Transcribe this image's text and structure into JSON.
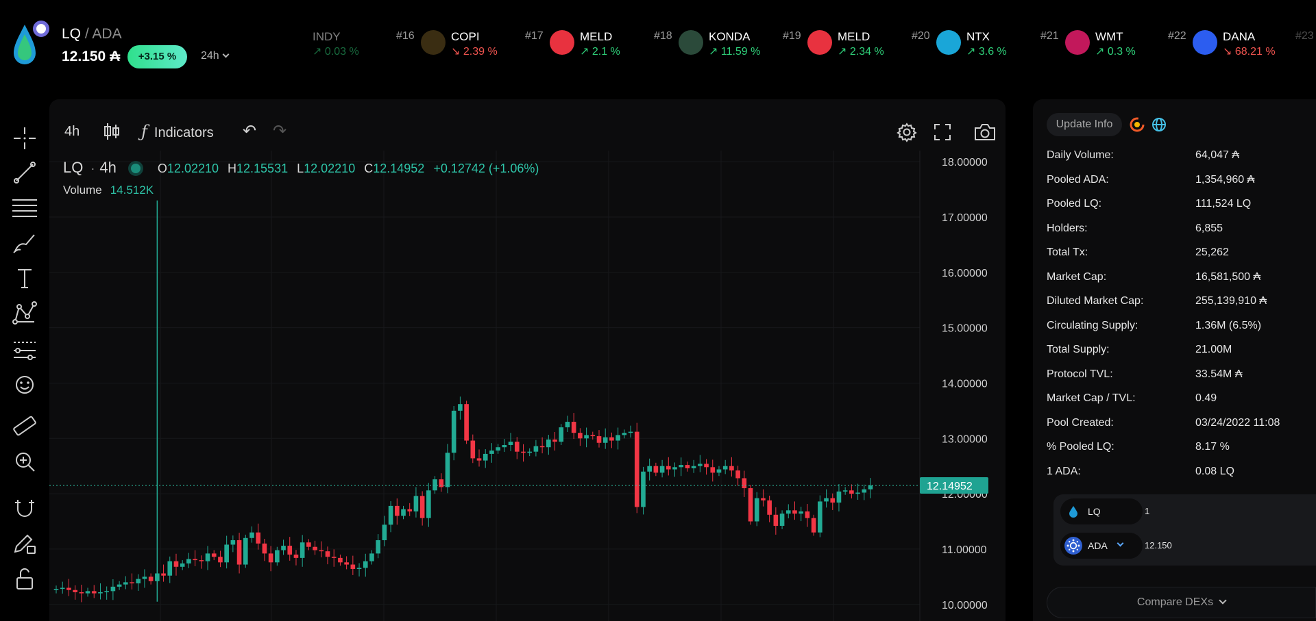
{
  "header": {
    "base": "LQ",
    "separator": "/",
    "quote": "ADA",
    "price": "12.150 ₳",
    "change": "+3.15 %",
    "period": "24h"
  },
  "ticker": [
    {
      "rank": "",
      "symbol": "INDY",
      "change": "↗ 0.03 %",
      "dir": "up",
      "faded": true
    },
    {
      "rank": "#16",
      "symbol": "COPI",
      "change": "↘ 2.39 %",
      "dir": "down",
      "logo_color": "#3a2d12"
    },
    {
      "rank": "#17",
      "symbol": "MELD",
      "change": "↗ 2.1 %",
      "dir": "up",
      "logo_color": "#e8323f"
    },
    {
      "rank": "#18",
      "symbol": "KONDA",
      "change": "↗ 11.59 %",
      "dir": "up",
      "logo_color": "#2b4a3a"
    },
    {
      "rank": "#19",
      "symbol": "MELD",
      "change": "↗ 2.34 %",
      "dir": "up",
      "logo_color": "#e8323f"
    },
    {
      "rank": "#20",
      "symbol": "NTX",
      "change": "↗ 3.6 %",
      "dir": "up",
      "logo_color": "#1aa6d8"
    },
    {
      "rank": "#21",
      "symbol": "WMT",
      "change": "↗ 0.3 %",
      "dir": "up",
      "logo_color": "#c2185b"
    },
    {
      "rank": "#22",
      "symbol": "DANA",
      "change": "↘ 68.21 %",
      "dir": "down",
      "logo_color": "#2c5df0"
    },
    {
      "rank": "#23",
      "symbol": "",
      "change": "",
      "dir": "up",
      "faded": true
    }
  ],
  "chart_toolbar": {
    "interval": "4h",
    "indicators_label": "Indicators"
  },
  "legend": {
    "symbol": "LQ",
    "interval": "4h",
    "o_label": "O",
    "o": "12.02210",
    "h_label": "H",
    "h": "12.15531",
    "l_label": "L",
    "l": "12.02210",
    "c_label": "C",
    "c": "12.14952",
    "change": "+0.12742 (+1.06%)",
    "volume_label": "Volume",
    "volume": "14.512K"
  },
  "chart_data": {
    "type": "candlestick",
    "ylim": [
      9.7,
      18.2
    ],
    "yticks": [
      "18.00000",
      "17.00000",
      "16.00000",
      "15.00000",
      "14.00000",
      "13.00000",
      "12.00000",
      "11.00000",
      "10.00000"
    ],
    "last_price": "12.14952",
    "last_value": 12.14952,
    "close": [
      10.28,
      10.3,
      10.26,
      10.22,
      10.2,
      10.24,
      10.2,
      10.22,
      10.24,
      10.32,
      10.36,
      10.4,
      10.38,
      10.46,
      10.5,
      10.42,
      10.56,
      10.52,
      10.78,
      10.68,
      10.74,
      10.82,
      10.8,
      10.78,
      10.92,
      10.86,
      10.76,
      11.08,
      11.16,
      10.72,
      11.2,
      11.3,
      11.1,
      10.92,
      10.76,
      10.98,
      11.06,
      10.9,
      10.84,
      11.12,
      11.04,
      10.98,
      10.96,
      10.86,
      10.84,
      10.76,
      10.72,
      10.64,
      10.66,
      10.78,
      10.92,
      11.16,
      11.44,
      11.78,
      11.6,
      11.72,
      11.68,
      11.96,
      11.56,
      12.06,
      12.26,
      12.12,
      12.74,
      13.5,
      13.62,
      12.96,
      12.64,
      12.6,
      12.72,
      12.78,
      12.84,
      12.88,
      12.94,
      12.76,
      12.74,
      12.76,
      12.86,
      12.84,
      12.98,
      12.94,
      13.2,
      13.3,
      13.1,
      13.0,
      13.06,
      13.04,
      12.92,
      13.02,
      12.96,
      13.06,
      13.1,
      13.12,
      11.76,
      12.4,
      12.5,
      12.38,
      12.5,
      12.44,
      12.48,
      12.52,
      12.46,
      12.5,
      12.54,
      12.48,
      12.38,
      12.44,
      12.5,
      12.42,
      12.28,
      12.1,
      11.5,
      11.92,
      11.88,
      11.62,
      11.42,
      11.64,
      11.7,
      11.64,
      11.68,
      11.56,
      11.3,
      11.86,
      11.92,
      11.84,
      12.04,
      12.06,
      12.0,
      12.02,
      12.08,
      12.14952
    ],
    "spike_x_index": 16,
    "spike_high": 17.3,
    "spike_low": 10.05
  },
  "info": {
    "update_label": "Update Info",
    "rows": [
      {
        "label": "Daily Volume:",
        "value": "64,047 ₳"
      },
      {
        "label": "Pooled ADA:",
        "value": "1,354,960 ₳"
      },
      {
        "label": "Pooled LQ:",
        "value": "111,524 LQ"
      },
      {
        "label": "Holders:",
        "value": "6,855"
      },
      {
        "label": "Total Tx:",
        "value": "25,262"
      },
      {
        "label": "Market Cap:",
        "value": "16,581,500 ₳"
      },
      {
        "label": "Diluted Market Cap:",
        "value": "255,139,910 ₳"
      },
      {
        "label": "Circulating Supply:",
        "value": "1.36M (6.5%)"
      },
      {
        "label": "Total Supply:",
        "value": "21.00M"
      },
      {
        "label": "Protocol TVL:",
        "value": "33.54M ₳"
      },
      {
        "label": "Market Cap / TVL:",
        "value": "0.49"
      },
      {
        "label": "Pool Created:",
        "value": "03/24/2022 11:08"
      },
      {
        "label": "% Pooled LQ:",
        "value": "8.17 %"
      },
      {
        "label": "1 ADA:",
        "value": "0.08 LQ"
      }
    ]
  },
  "swap": {
    "from_token": "LQ",
    "from_amount": "1",
    "to_token": "ADA",
    "to_amount": "12.150"
  },
  "compare_label": "Compare DEXs",
  "colors": {
    "up": "#22ab94",
    "down": "#f23645",
    "accent": "#2ec4a8"
  }
}
